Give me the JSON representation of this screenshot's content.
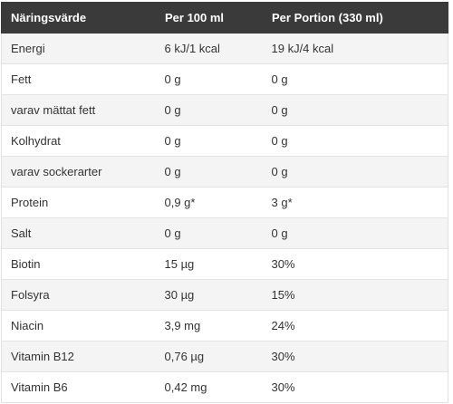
{
  "table": {
    "headers": [
      "Näringsvärde",
      "Per 100 ml",
      "Per Portion (330 ml)"
    ],
    "rows": [
      [
        "Energi",
        "6 kJ/1 kcal",
        "19 kJ/4 kcal"
      ],
      [
        "Fett",
        "0 g",
        "0 g"
      ],
      [
        "varav mättat fett",
        "0 g",
        "0 g"
      ],
      [
        "Kolhydrat",
        "0 g",
        "0 g"
      ],
      [
        "varav sockerarter",
        "0 g",
        "0 g"
      ],
      [
        "Protein",
        "0,9 g*",
        "3 g*"
      ],
      [
        "Salt",
        "0 g",
        "0 g"
      ],
      [
        "Biotin",
        "15 µg",
        "30%"
      ],
      [
        "Folsyra",
        "30 µg",
        "15%"
      ],
      [
        "Niacin",
        "3,9 mg",
        "24%"
      ],
      [
        "Vitamin B12",
        "0,76 µg",
        "30%"
      ],
      [
        "Vitamin B6",
        "0,42 mg",
        "30%"
      ]
    ]
  },
  "colors": {
    "header_bg": "#3a3a3a",
    "header_text": "#ffffff",
    "row_alt_bg": "#f4f4f4",
    "row_bg": "#ffffff",
    "border": "#e3e3e3"
  }
}
